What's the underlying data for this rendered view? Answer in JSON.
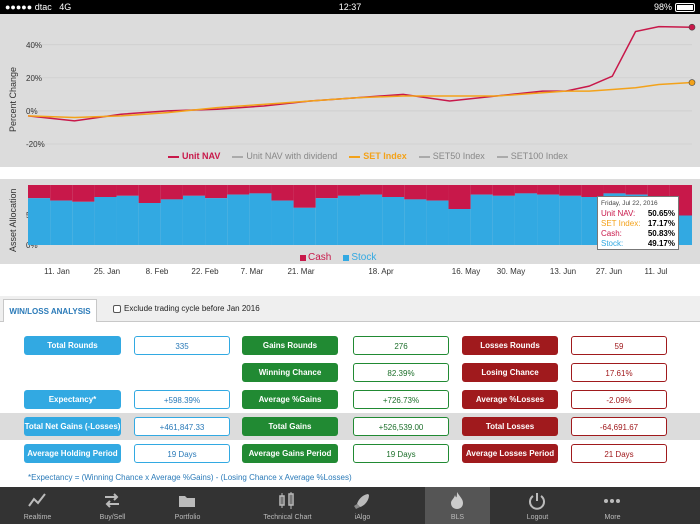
{
  "status_bar": {
    "carrier": "dtac",
    "network": "4G",
    "time": "12:37",
    "battery": "98%"
  },
  "chart_data": [
    {
      "type": "line",
      "ylabel": "Percent Change",
      "y_ticks": [
        "40%",
        "20%",
        "0%",
        "-20%"
      ],
      "ylim": [
        -20,
        55
      ],
      "x": [
        "2016-01-04",
        "2016-01-18",
        "2016-02-01",
        "2016-02-15",
        "2016-03-01",
        "2016-03-15",
        "2016-03-29",
        "2016-04-12",
        "2016-04-26",
        "2016-05-10",
        "2016-05-24",
        "2016-06-07",
        "2016-06-14",
        "2016-06-21",
        "2016-06-28",
        "2016-07-05",
        "2016-07-12",
        "2016-07-22"
      ],
      "series": [
        {
          "name": "Unit NAV",
          "color": "#c8184a",
          "values": [
            -3,
            -6,
            -2,
            0,
            1,
            3,
            6,
            8,
            10,
            6,
            9,
            12,
            12,
            15,
            21,
            48,
            51,
            50.65
          ]
        },
        {
          "name": "SET Index",
          "color": "#f3a21a",
          "values": [
            -3,
            -4,
            -3,
            -1,
            2,
            4,
            6,
            8,
            9,
            9,
            9,
            11,
            12,
            12,
            13,
            14,
            16,
            17.17
          ]
        }
      ],
      "legend": [
        "Unit NAV",
        "Unit NAV with dividend",
        "SET Index",
        "SET50 Index",
        "SET100 Index"
      ],
      "legend_colors": [
        "#c8184a",
        "#aaaaaa",
        "#f3a21a",
        "#aaaaaa",
        "#aaaaaa"
      ],
      "legend_placement": "bottom",
      "grid": true
    },
    {
      "type": "bar",
      "stacked": true,
      "ylabel": "Asset Allocation",
      "y_ticks": [
        "50%",
        "0%"
      ],
      "x_ticks": [
        "11. Jan",
        "25. Jan",
        "8. Feb",
        "22. Feb",
        "7. Mar",
        "21. Mar",
        "18. Apr",
        "16. May",
        "30. May",
        "13. Jun",
        "27. Jun",
        "11. Jul"
      ],
      "series": [
        {
          "name": "Cash",
          "color": "#c8184a"
        },
        {
          "name": "Stock",
          "color": "#32a9e2",
          "values": [
            78,
            74,
            72,
            80,
            82,
            70,
            76,
            82,
            78,
            84,
            86,
            74,
            62,
            78,
            82,
            84,
            80,
            76,
            74,
            60,
            84,
            82,
            86,
            84,
            82,
            80,
            86,
            84,
            80,
            49.17
          ]
        }
      ],
      "legend_placement": "bottom"
    }
  ],
  "tooltip": {
    "date": "Friday, Jul 22, 2016",
    "rows": [
      {
        "label": "Unit NAV:",
        "value": "50.65%",
        "color": "#c8184a"
      },
      {
        "label": "SET Index:",
        "value": "17.17%",
        "color": "#f3a21a"
      },
      {
        "label": "Cash:",
        "value": "50.83%",
        "color": "#c8184a"
      },
      {
        "label": "Stock:",
        "value": "49.17%",
        "color": "#32a9e2"
      }
    ]
  },
  "tabs": {
    "active": "WIN/LOSS ANALYSIS",
    "exclude_label": "Exclude trading cycle before Jan 2016"
  },
  "stats": {
    "total_rounds": {
      "label": "Total Rounds",
      "value": "335"
    },
    "gains_rounds": {
      "label": "Gains Rounds",
      "value": "276"
    },
    "losses_rounds": {
      "label": "Losses Rounds",
      "value": "59"
    },
    "winning_chance": {
      "label": "Winning Chance",
      "value": "82.39%"
    },
    "losing_chance": {
      "label": "Losing Chance",
      "value": "17.61%"
    },
    "expectancy": {
      "label": "Expectancy*",
      "value": "+598.39%"
    },
    "avg_gains": {
      "label": "Average %Gains",
      "value": "+726.73%"
    },
    "avg_losses": {
      "label": "Average %Losses",
      "value": "-2.09%"
    },
    "total_net": {
      "label": "Total Net Gains (-Losses)",
      "value": "+461,847.33"
    },
    "total_gains": {
      "label": "Total Gains",
      "value": "+526,539.00"
    },
    "total_losses": {
      "label": "Total Losses",
      "value": "-64,691.67"
    },
    "avg_holding": {
      "label": "Average Holding Period",
      "value": "19 Days"
    },
    "avg_gains_period": {
      "label": "Average Gains Period",
      "value": "19 Days"
    },
    "avg_losses_period": {
      "label": "Average Losses Period",
      "value": "21 Days"
    },
    "formula": "*Expectancy = (Winning Chance x Average %Gains) - (Losing Chance x Average %Losses)"
  },
  "nav": {
    "items": [
      {
        "label": "Realtime",
        "icon": "chart-line-icon"
      },
      {
        "label": "Buy/Sell",
        "icon": "arrows-exchange-icon"
      },
      {
        "label": "Portfolio",
        "icon": "folder-icon"
      },
      {
        "label": "Technical Chart",
        "icon": "candlestick-icon"
      },
      {
        "label": "iAlgo",
        "icon": "rocket-icon"
      },
      {
        "label": "BLS",
        "icon": "fire-icon"
      },
      {
        "label": "Logout",
        "icon": "power-icon"
      },
      {
        "label": "More",
        "icon": "more-dots-icon"
      }
    ],
    "active_index": 5
  }
}
